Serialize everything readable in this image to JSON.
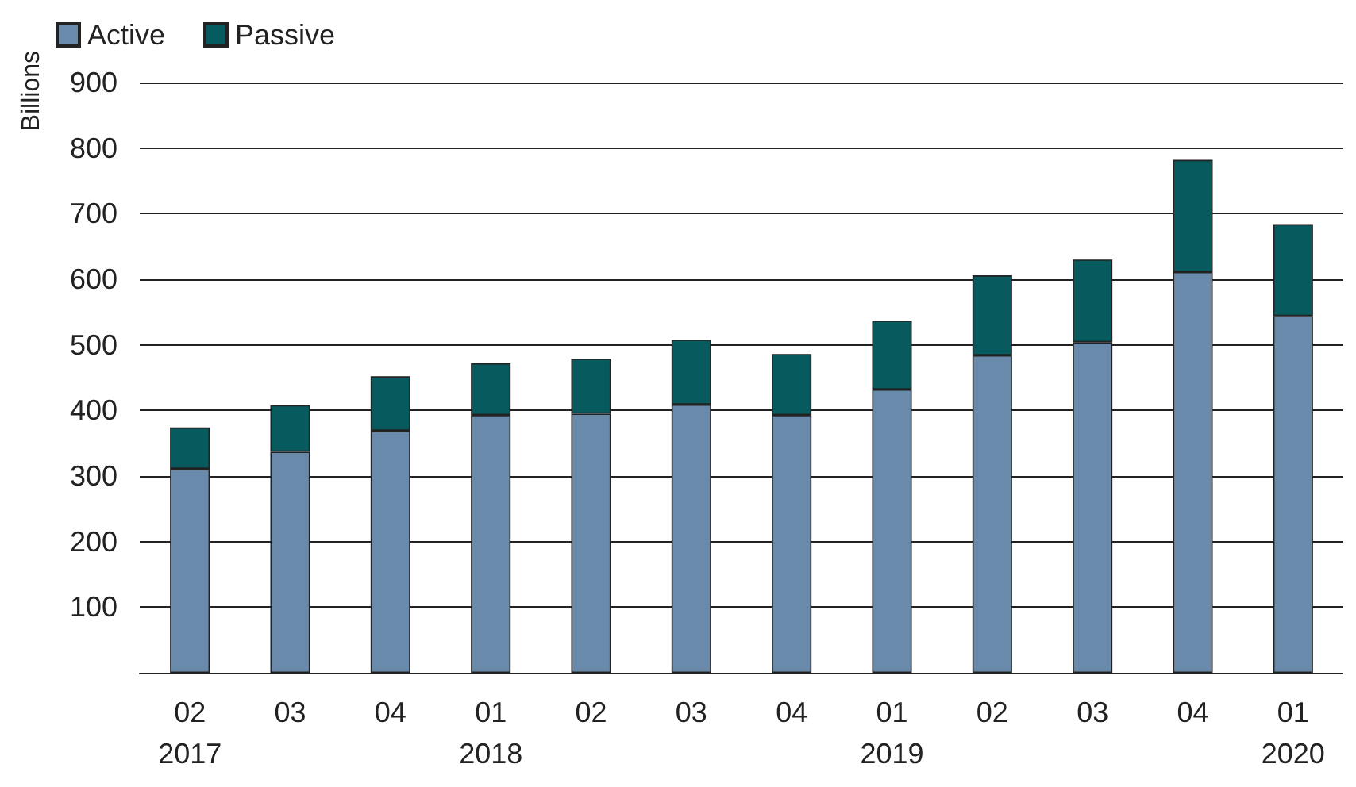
{
  "chart_data": {
    "type": "bar",
    "ylabel": "Billions",
    "categories": [
      "02\n2017",
      "03",
      "04",
      "01\n2018",
      "02",
      "03",
      "04",
      "01\n2019",
      "02",
      "03",
      "04",
      "01\n2020"
    ],
    "series": [
      {
        "name": "Active",
        "color": "#6a8aab",
        "values": [
          311,
          337,
          369,
          393,
          395,
          409,
          393,
          432,
          484,
          504,
          611,
          544
        ]
      },
      {
        "name": "Passive",
        "color": "#075a5e",
        "values": [
          63,
          71,
          83,
          79,
          84,
          99,
          93,
          105,
          122,
          126,
          171,
          140
        ]
      }
    ],
    "stacked": true,
    "ylim": [
      0,
      900
    ],
    "yticks": [
      100,
      200,
      300,
      400,
      500,
      600,
      700,
      800,
      900
    ],
    "grid": "y",
    "legend": "top left"
  }
}
